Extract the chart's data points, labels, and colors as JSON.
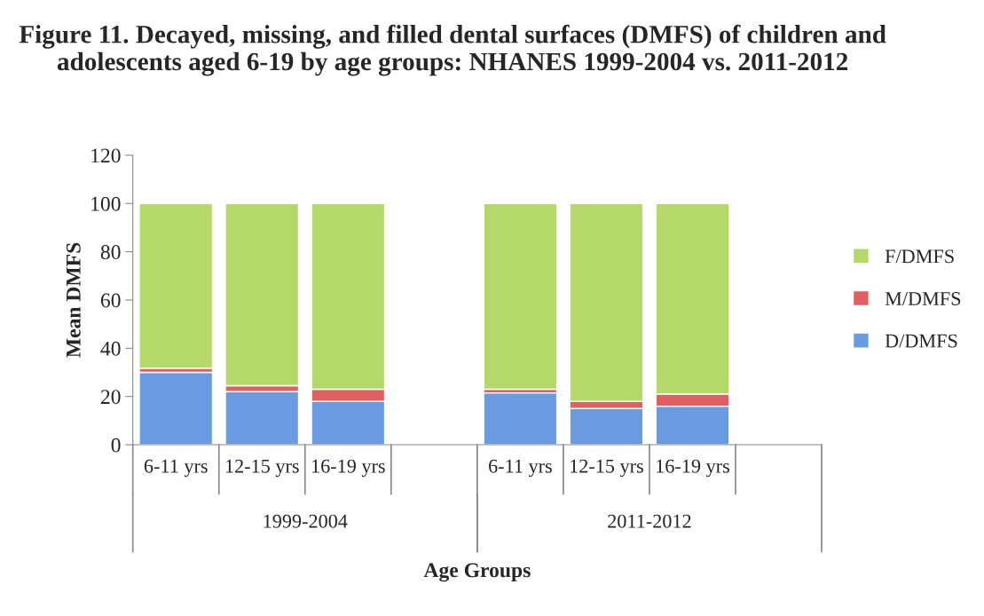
{
  "chart_data": {
    "type": "bar",
    "stacked": true,
    "title": "Figure 11. Decayed, missing, and filled dental surfaces (DMFS) of children and adolescents aged 6-19 by age groups: NHANES 1999-2004 vs. 2011-2012",
    "xlabel": "Age Groups",
    "ylabel": "Mean DMFS",
    "categories": [
      "6-11 yrs",
      "12-15 yrs",
      "16-19 yrs",
      null,
      "6-11 yrs",
      "12-15 yrs",
      "16-19 yrs",
      null
    ],
    "annotations": [
      "1999-2004",
      "2011-2012"
    ],
    "series": [
      {
        "name": "D/DMFS",
        "color": "#6a9be0",
        "values": [
          30,
          22,
          18,
          null,
          21.5,
          15,
          16,
          null
        ]
      },
      {
        "name": "M/DMFS",
        "color": "#e06060",
        "values": [
          1.7,
          2.5,
          5,
          null,
          1.5,
          3,
          5,
          null
        ]
      },
      {
        "name": "F/DMFS",
        "color": "#b5d86a",
        "values": [
          68.3,
          75.5,
          77,
          null,
          77,
          82,
          79,
          null
        ]
      }
    ],
    "ylim": [
      0,
      120
    ],
    "yticks": [
      0,
      20,
      40,
      60,
      80,
      100,
      120
    ],
    "grid": false,
    "legend": "right"
  }
}
